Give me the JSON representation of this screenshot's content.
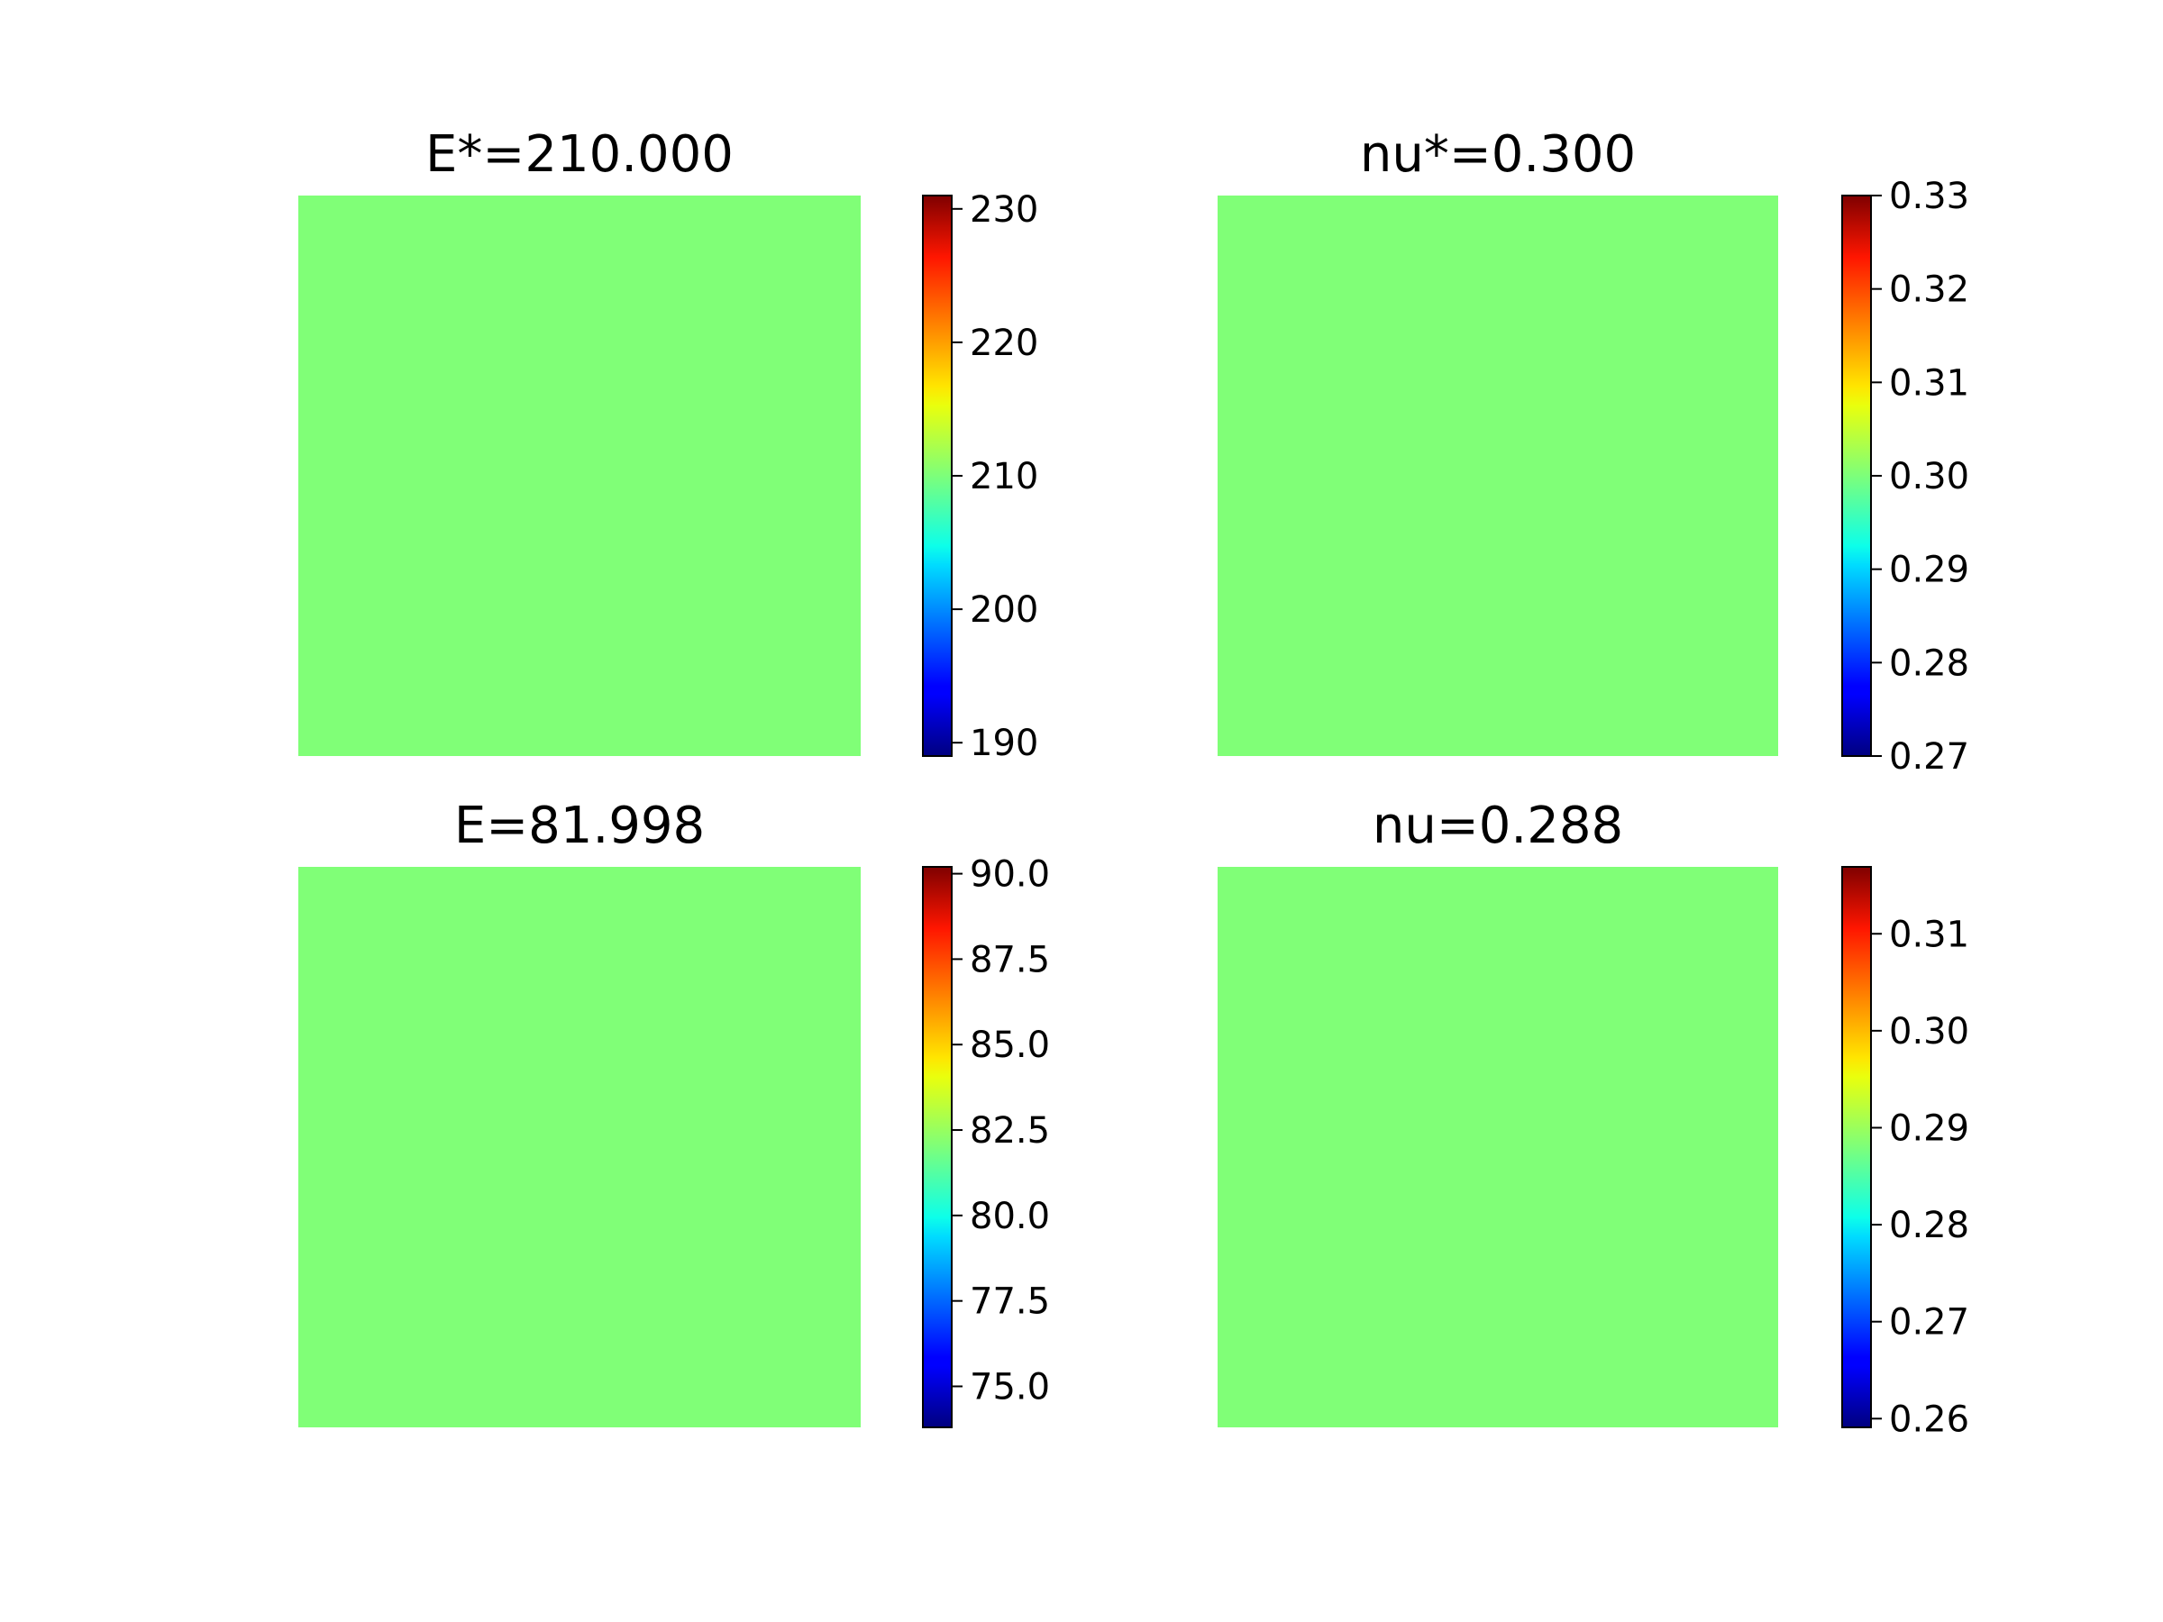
{
  "chart_data": [
    {
      "type": "heatmap",
      "title": "E*=210.000",
      "field_value": 210.0,
      "cell_color": "#80ff77",
      "colormap": "jet",
      "colorbar": {
        "range": [
          189,
          231
        ],
        "ticks": [
          190,
          200,
          210,
          220,
          230
        ],
        "tick_labels": [
          "190",
          "200",
          "210",
          "220",
          "230"
        ]
      }
    },
    {
      "type": "heatmap",
      "title": "nu*=0.300",
      "field_value": 0.3,
      "cell_color": "#80ff77",
      "colormap": "jet",
      "colorbar": {
        "range": [
          0.27,
          0.33
        ],
        "ticks": [
          0.27,
          0.28,
          0.29,
          0.3,
          0.31,
          0.32,
          0.33
        ],
        "tick_labels": [
          "0.27",
          "0.28",
          "0.29",
          "0.30",
          "0.31",
          "0.32",
          "0.33"
        ]
      }
    },
    {
      "type": "heatmap",
      "title": "E=81.998",
      "field_value": 81.998,
      "cell_color": "#80ff77",
      "colormap": "jet",
      "colorbar": {
        "range": [
          73.8,
          90.2
        ],
        "ticks": [
          75.0,
          77.5,
          80.0,
          82.5,
          85.0,
          87.5,
          90.0
        ],
        "tick_labels": [
          "75.0",
          "77.5",
          "80.0",
          "82.5",
          "85.0",
          "87.5",
          "90.0"
        ]
      }
    },
    {
      "type": "heatmap",
      "title": "nu=0.288",
      "field_value": 0.288,
      "cell_color": "#80ff77",
      "colormap": "jet",
      "colorbar": {
        "range": [
          0.2591,
          0.3169
        ],
        "ticks": [
          0.26,
          0.27,
          0.28,
          0.29,
          0.3,
          0.31
        ],
        "tick_labels": [
          "0.26",
          "0.27",
          "0.28",
          "0.29",
          "0.30",
          "0.31"
        ]
      }
    }
  ]
}
